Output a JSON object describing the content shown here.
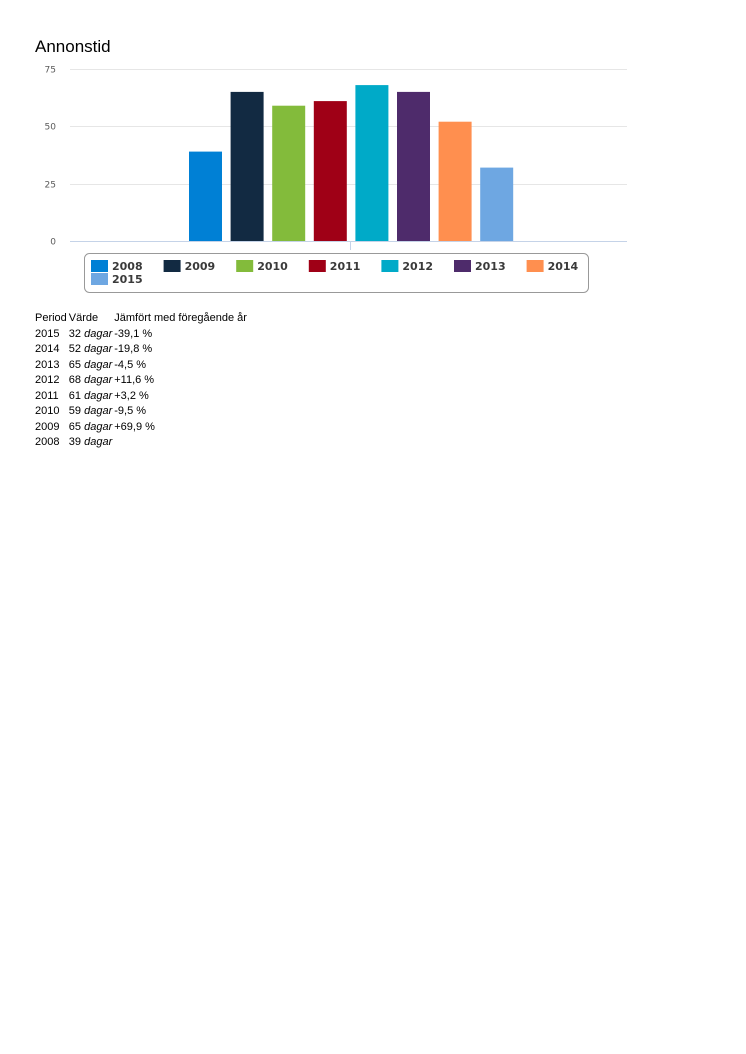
{
  "title": "Annonstid",
  "chart_data": {
    "type": "bar",
    "title": "Annonstid",
    "xlabel": "",
    "ylabel": "",
    "ylim": [
      0,
      75
    ],
    "yticks": [
      0,
      25,
      50,
      75
    ],
    "grid": true,
    "legend_position": "bottom",
    "categories": [
      "2008",
      "2009",
      "2010",
      "2011",
      "2012",
      "2013",
      "2014",
      "2015"
    ],
    "values": [
      39,
      65,
      59,
      61,
      68,
      65,
      52,
      32
    ],
    "colors": [
      "#0080d5",
      "#122a42",
      "#83bb3b",
      "#9f0016",
      "#00aac8",
      "#4e2b6b",
      "#ff8f4f",
      "#6ea7e2"
    ]
  },
  "table": {
    "headers": [
      "Period",
      "Värde",
      "Jämfört med föregående år"
    ],
    "rows": [
      {
        "period": "2015",
        "value": "32",
        "unit": "dagar",
        "change": "-39,1 %"
      },
      {
        "period": "2014",
        "value": "52",
        "unit": "dagar",
        "change": "-19,8 %"
      },
      {
        "period": "2013",
        "value": "65",
        "unit": "dagar",
        "change": "-4,5 %"
      },
      {
        "period": "2012",
        "value": "68",
        "unit": "dagar",
        "change": "+11,6 %"
      },
      {
        "period": "2011",
        "value": "61",
        "unit": "dagar",
        "change": "+3,2 %"
      },
      {
        "period": "2010",
        "value": "59",
        "unit": "dagar",
        "change": "-9,5 %"
      },
      {
        "period": "2009",
        "value": "65",
        "unit": "dagar",
        "change": "+69,9 %"
      },
      {
        "period": "2008",
        "value": "39",
        "unit": "dagar",
        "change": ""
      }
    ]
  }
}
